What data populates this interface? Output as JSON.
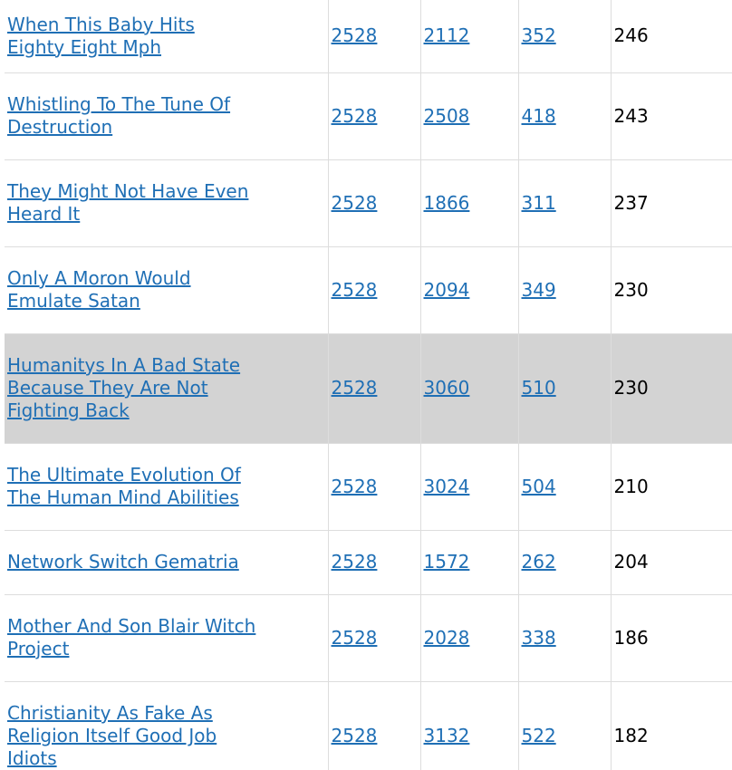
{
  "colors": {
    "link": "#1f6fb5",
    "highlight_row": "#d3d3d3",
    "border": "#dddddd"
  },
  "rows": [
    {
      "phrase": "When This Baby Hits Eighty Eight Mph",
      "v1": "2528",
      "v2": "2112",
      "v3": "352",
      "v4": "246"
    },
    {
      "phrase": "Whistling To The Tune Of Destruction",
      "v1": "2528",
      "v2": "2508",
      "v3": "418",
      "v4": "243"
    },
    {
      "phrase": "They Might Not Have Even Heard It",
      "v1": "2528",
      "v2": "1866",
      "v3": "311",
      "v4": "237"
    },
    {
      "phrase": "Only A Moron Would Emulate Satan",
      "v1": "2528",
      "v2": "2094",
      "v3": "349",
      "v4": "230"
    },
    {
      "phrase": "Humanitys In A Bad State Because They Are Not Fighting Back",
      "v1": "2528",
      "v2": "3060",
      "v3": "510",
      "v4": "230",
      "highlighted": true
    },
    {
      "phrase": "The Ultimate Evolution Of The Human Mind Abilities",
      "v1": "2528",
      "v2": "3024",
      "v3": "504",
      "v4": "210"
    },
    {
      "phrase": "Network Switch Gematria",
      "v1": "2528",
      "v2": "1572",
      "v3": "262",
      "v4": "204"
    },
    {
      "phrase": "Mother And Son Blair Witch Project",
      "v1": "2528",
      "v2": "2028",
      "v3": "338",
      "v4": "186"
    },
    {
      "phrase": "Christianity As Fake As Religion Itself Good Job Idiots",
      "v1": "2528",
      "v2": "3132",
      "v3": "522",
      "v4": "182"
    }
  ]
}
